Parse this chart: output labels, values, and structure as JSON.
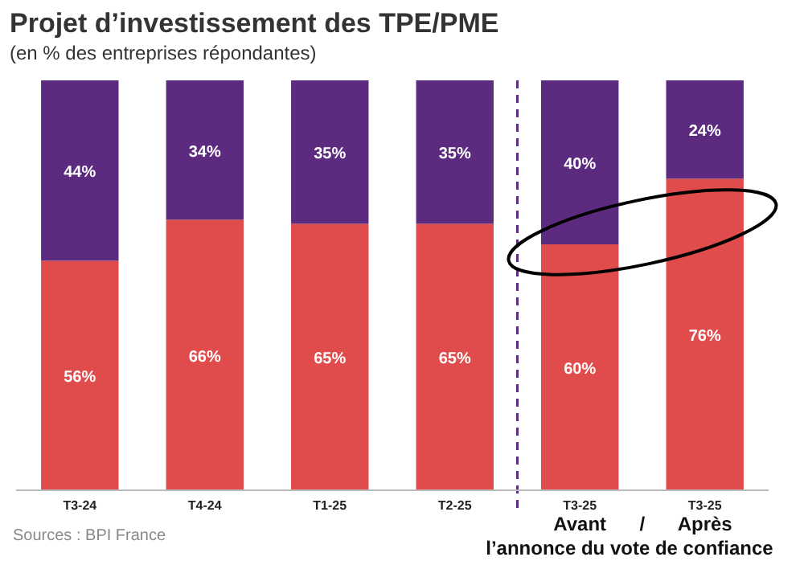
{
  "chart_data": {
    "type": "bar",
    "stacked": true,
    "title": "Projet d’investissement des TPE/PME",
    "subtitle": "(en % des entreprises répondantes)",
    "categories": [
      "T3-24",
      "T4-24",
      "T1-25",
      "T2-25",
      "T3-25",
      "T3-25"
    ],
    "series": [
      {
        "color": "#e04b4b",
        "values": [
          56,
          66,
          65,
          65,
          60,
          76
        ],
        "value_labels": [
          "56%",
          "66%",
          "65%",
          "65%",
          "60%",
          "76%"
        ]
      },
      {
        "color": "#5c2a7e",
        "values": [
          44,
          34,
          35,
          35,
          40,
          24
        ],
        "value_labels": [
          "44%",
          "34%",
          "35%",
          "35%",
          "40%",
          "24%"
        ]
      }
    ],
    "annotations": [
      "Avant",
      "/",
      "Après",
      "l’annonce du vote de confiance",
      "Sources : BPI France"
    ]
  }
}
